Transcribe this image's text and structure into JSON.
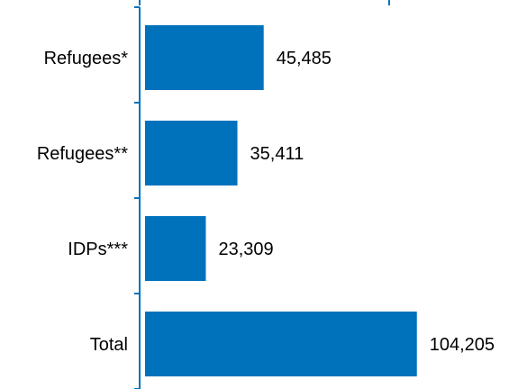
{
  "colors": {
    "bar": "#0072bc",
    "axis": "#0072bc",
    "text": "#000000"
  },
  "chart_data": {
    "type": "bar",
    "orientation": "horizontal",
    "categories": [
      "Refugees*",
      "Refugees**",
      "IDPs***",
      "Total"
    ],
    "values": [
      45485,
      35411,
      23309,
      104205
    ],
    "value_labels": [
      "45,485",
      "35,411",
      "23,309",
      "104,205"
    ],
    "title": "",
    "xlabel": "",
    "ylabel": "",
    "xlim": [
      0,
      115000
    ],
    "grid": false,
    "legend": "none"
  }
}
